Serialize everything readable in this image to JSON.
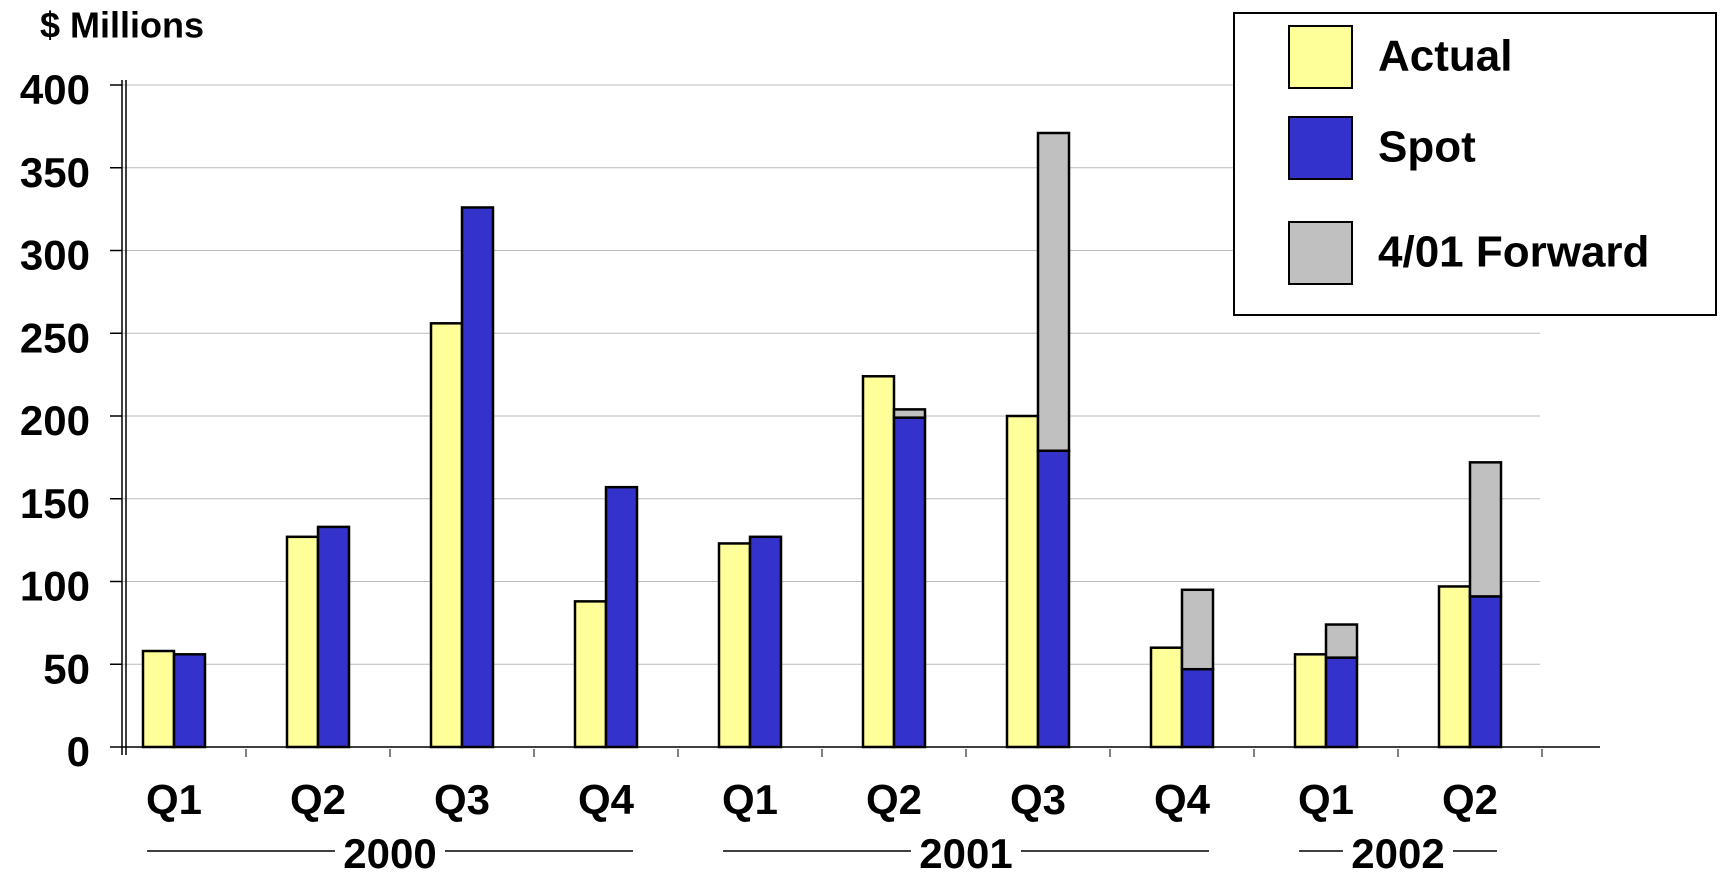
{
  "chart_data": {
    "type": "bar",
    "y_label": "$ Millions",
    "groups": [
      {
        "name": "2000",
        "categories": [
          "Q1",
          "Q2",
          "Q3",
          "Q4"
        ]
      },
      {
        "name": "2001",
        "categories": [
          "Q1",
          "Q2",
          "Q3",
          "Q4"
        ]
      },
      {
        "name": "2002",
        "categories": [
          "Q1",
          "Q2"
        ]
      }
    ],
    "series": [
      {
        "name": "Actual",
        "color": "#ffff99",
        "values": [
          58,
          127,
          256,
          88,
          123,
          224,
          200,
          60,
          56,
          97
        ]
      },
      {
        "name": "Spot",
        "color": "#3333cc",
        "values": [
          56,
          133,
          326,
          157,
          127,
          199,
          179,
          47,
          54,
          91
        ]
      },
      {
        "name": "4/01 Forward",
        "color": "#c0c0c0",
        "stack": "Spot",
        "values": [
          null,
          null,
          null,
          null,
          null,
          5,
          192,
          48,
          20,
          81
        ]
      }
    ],
    "ylim": [
      0,
      400
    ],
    "yticks": [
      0,
      50,
      100,
      150,
      200,
      250,
      300,
      350,
      400
    ],
    "grid": true,
    "legend": "top-right"
  }
}
